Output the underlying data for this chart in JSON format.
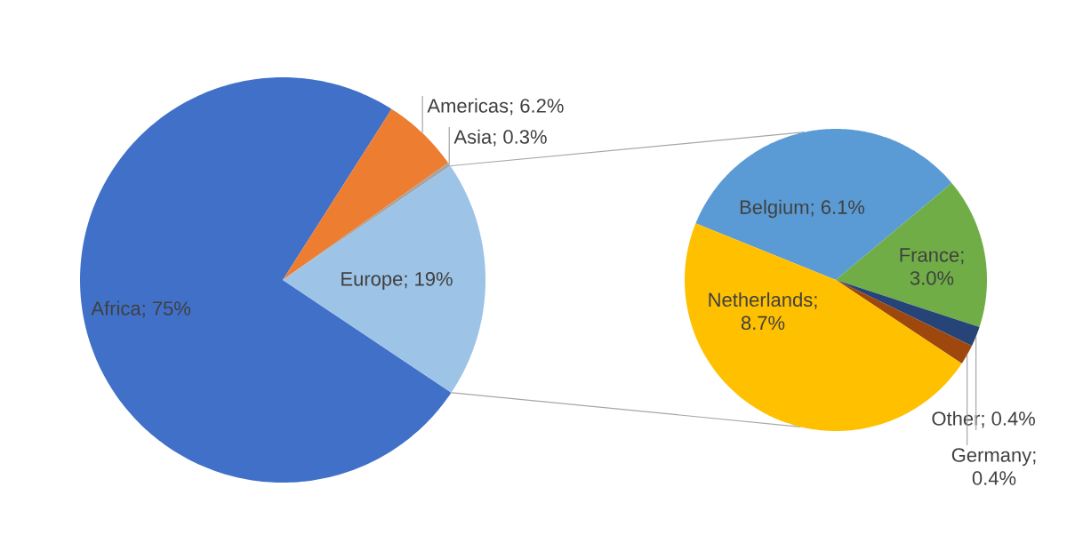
{
  "chart_data": [
    {
      "type": "pie",
      "categories": [
        "Africa",
        "Americas",
        "Asia",
        "Europe"
      ],
      "values": [
        75,
        6.2,
        0.3,
        19
      ],
      "value_labels": [
        "; 75%",
        "; 6.2%",
        "; 0.3%",
        "; 19%"
      ],
      "colors": [
        "#4070c8",
        "#ed7d31",
        "#a5a5a5",
        "#9dc3e6"
      ]
    },
    {
      "type": "pie",
      "categories": [
        "Belgium",
        "France",
        "Other",
        "Germany",
        "Netherlands"
      ],
      "values": [
        6.1,
        3.0,
        0.4,
        0.4,
        8.7
      ],
      "value_labels": [
        "; 6.1%",
        "; 3.0%",
        "; 0.4%",
        "; 0.4%",
        "; 8.7%"
      ],
      "colors": [
        "#5b9bd5",
        "#70ad47",
        "#264478",
        "#9e480e",
        "#ffc000"
      ]
    }
  ]
}
